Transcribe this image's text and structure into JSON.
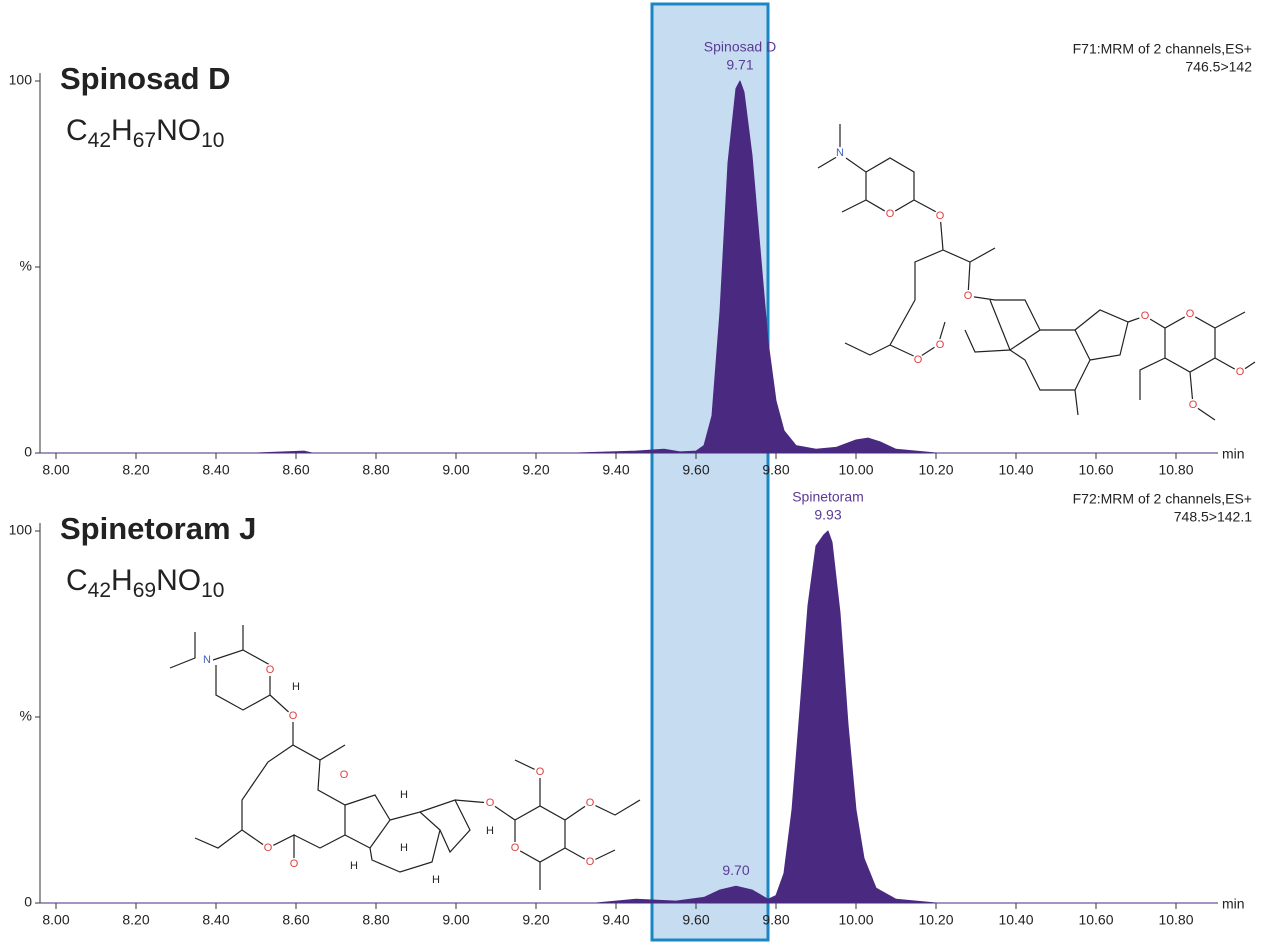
{
  "chart_data": [
    {
      "type": "area",
      "title": "Spinosad D",
      "formula": [
        "C",
        "42",
        "H",
        "67",
        "NO",
        "10"
      ],
      "method": "F71:MRM of 2 channels,ES+",
      "transition": "746.5>142",
      "x_label": "min",
      "color": "#4a2a80",
      "x": [
        7.96,
        8.5,
        8.62,
        8.64,
        9.3,
        9.45,
        9.52,
        9.56,
        9.6,
        9.62,
        9.64,
        9.66,
        9.68,
        9.7,
        9.71,
        9.72,
        9.74,
        9.76,
        9.78,
        9.8,
        9.82,
        9.85,
        9.9,
        9.95,
        10.0,
        10.03,
        10.06,
        10.1,
        10.15,
        10.2,
        10.9
      ],
      "values": [
        0,
        0,
        0.5,
        0,
        0,
        0.5,
        1,
        0.3,
        0.5,
        2,
        10,
        38,
        78,
        98,
        100,
        97,
        80,
        55,
        30,
        14,
        6,
        2,
        1,
        1.5,
        3.5,
        4,
        3,
        1,
        0.5,
        0,
        0
      ],
      "peaks": [
        {
          "name": "Spinosad D",
          "rt": {
            "value": 9.71,
            "label": "9.71"
          },
          "height": 100
        }
      ],
      "structure_labels": [
        "N",
        "O",
        "O",
        "O",
        "O",
        "O",
        "O",
        "O",
        "O",
        "O"
      ],
      "xlim": [
        7.96,
        10.905
      ],
      "ylim": [
        0,
        100
      ],
      "xticks": [
        {
          "value": 8,
          "label": "8.00"
        },
        {
          "value": 8.2,
          "label": "8.20"
        },
        {
          "value": 8.4,
          "label": "8.40"
        },
        {
          "value": 8.6,
          "label": "8.60"
        },
        {
          "value": 8.8,
          "label": "8.80"
        },
        {
          "value": 9,
          "label": "9.00"
        },
        {
          "value": 9.2,
          "label": "9.20"
        },
        {
          "value": 9.4,
          "label": "9.40"
        },
        {
          "value": 9.6,
          "label": "9.60"
        },
        {
          "value": 9.8,
          "label": "9.80"
        },
        {
          "value": 10,
          "label": "10.00"
        },
        {
          "value": 10.2,
          "label": "10.20"
        },
        {
          "value": 10.4,
          "label": "10.40"
        },
        {
          "value": 10.6,
          "label": "10.60"
        },
        {
          "value": 10.8,
          "label": "10.80"
        }
      ],
      "yticks": [
        0,
        {
          "value": 50,
          "label": "%"
        },
        100
      ]
    },
    {
      "type": "area",
      "title": "Spinetoram J",
      "formula": [
        "C",
        "42",
        "H",
        "69",
        "NO",
        "10"
      ],
      "method": "F72:MRM of 2 channels,ES+",
      "transition": "748.5>142.1",
      "x_label": "min",
      "color": "#4a2a80",
      "x": [
        7.96,
        9.35,
        9.45,
        9.55,
        9.62,
        9.66,
        9.7,
        9.74,
        9.78,
        9.8,
        9.82,
        9.84,
        9.86,
        9.88,
        9.9,
        9.92,
        9.93,
        9.94,
        9.96,
        9.98,
        10.0,
        10.02,
        10.05,
        10.1,
        10.2,
        10.9
      ],
      "values": [
        0,
        0,
        1,
        0.5,
        1.5,
        3.5,
        4.5,
        3.5,
        1,
        2,
        8,
        25,
        52,
        80,
        96,
        99,
        100,
        97,
        78,
        48,
        25,
        12,
        4,
        1,
        0,
        0
      ],
      "peaks": [
        {
          "name": "Spinetoram",
          "rt": {
            "value": 9.93,
            "label": "9.93"
          },
          "height": 100
        },
        {
          "rt": {
            "value": 9.7,
            "label": "9.70"
          },
          "height": 4.5
        }
      ],
      "structure_labels": [
        "N",
        "O",
        "H",
        "O",
        "O",
        "O",
        "O",
        "H",
        "H",
        "H",
        "H",
        "O",
        "H",
        "O",
        "O",
        "O",
        "O"
      ],
      "xlim": [
        7.96,
        10.905
      ],
      "ylim": [
        0,
        100
      ],
      "xticks": [
        {
          "value": 8,
          "label": "8.00"
        },
        {
          "value": 8.2,
          "label": "8.20"
        },
        {
          "value": 8.4,
          "label": "8.40"
        },
        {
          "value": 8.6,
          "label": "8.60"
        },
        {
          "value": 8.8,
          "label": "8.80"
        },
        {
          "value": 9,
          "label": "9.00"
        },
        {
          "value": 9.2,
          "label": "9.20"
        },
        {
          "value": 9.4,
          "label": "9.40"
        },
        {
          "value": 9.6,
          "label": "9.60"
        },
        {
          "value": 9.8,
          "label": "9.80"
        },
        {
          "value": 10,
          "label": "10.00"
        },
        {
          "value": 10.2,
          "label": "10.20"
        },
        {
          "value": 10.4,
          "label": "10.40"
        },
        {
          "value": 10.6,
          "label": "10.60"
        },
        {
          "value": 10.8,
          "label": "10.80"
        }
      ],
      "yticks": [
        0,
        {
          "value": 50,
          "label": "%"
        },
        100
      ]
    }
  ],
  "highlight_band": [
    9.49,
    9.78
  ]
}
